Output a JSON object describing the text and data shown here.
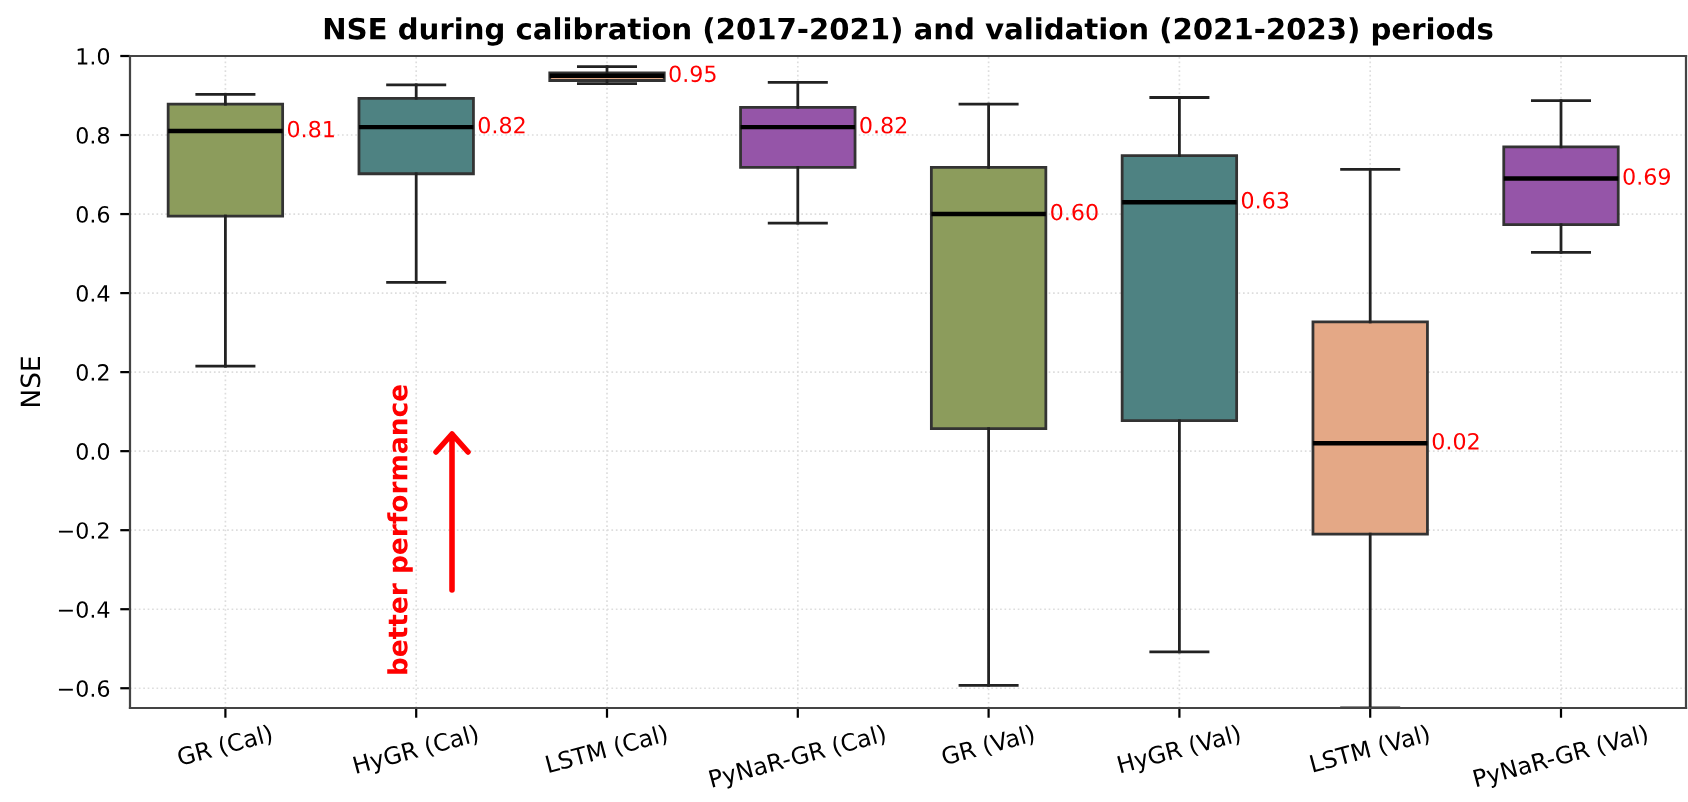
{
  "chart_data": {
    "type": "box",
    "title": "NSE during calibration (2017-2021) and validation (2021-2023) periods",
    "ylabel": "NSE",
    "categories": [
      "GR (Cal)",
      "HyGR (Cal)",
      "LSTM (Cal)",
      "PyNaR-GR (Cal)",
      "GR (Val)",
      "HyGR (Val)",
      "LSTM (Val)",
      "PyNaR-GR (Val)"
    ],
    "boxes": [
      {
        "low": 0.215,
        "q1": 0.595,
        "median": 0.81,
        "q3": 0.878,
        "high": 0.903
      },
      {
        "low": 0.427,
        "q1": 0.702,
        "median": 0.82,
        "q3": 0.893,
        "high": 0.927
      },
      {
        "low": 0.93,
        "q1": 0.938,
        "median": 0.95,
        "q3": 0.957,
        "high": 0.973
      },
      {
        "low": 0.577,
        "q1": 0.718,
        "median": 0.82,
        "q3": 0.87,
        "high": 0.933
      },
      {
        "low": -0.593,
        "q1": 0.057,
        "median": 0.6,
        "q3": 0.718,
        "high": 0.878
      },
      {
        "low": -0.508,
        "q1": 0.077,
        "median": 0.63,
        "q3": 0.748,
        "high": 0.895
      },
      {
        "low": -0.65,
        "q1": -0.21,
        "median": 0.02,
        "q3": 0.327,
        "high": 0.713
      },
      {
        "low": 0.503,
        "q1": 0.573,
        "median": 0.69,
        "q3": 0.77,
        "high": 0.887
      }
    ],
    "colors": [
      "#8c9c5c",
      "#4e8282",
      "#e4a886",
      "#9555a8",
      "#8c9c5c",
      "#4e8282",
      "#e4a886",
      "#9555a8"
    ],
    "value_labels": [
      "0.81",
      "0.82",
      "0.95",
      "0.82",
      "0.60",
      "0.63",
      "0.02",
      "0.69"
    ],
    "ylim": [
      -0.65,
      1.0
    ],
    "yticks": [
      {
        "value": -0.6,
        "label": "−0.6"
      },
      {
        "value": -0.4,
        "label": "−0.4"
      },
      {
        "value": -0.2,
        "label": "−0.2"
      },
      {
        "value": 0.0,
        "label": "0.0"
      },
      {
        "value": 0.2,
        "label": "0.2"
      },
      {
        "value": 0.4,
        "label": "0.4"
      },
      {
        "value": 0.6,
        "label": "0.6"
      },
      {
        "value": 0.8,
        "label": "0.8"
      },
      {
        "value": 1.0,
        "label": "1.0"
      }
    ],
    "grid": true,
    "annotations": [
      "better performance"
    ]
  }
}
